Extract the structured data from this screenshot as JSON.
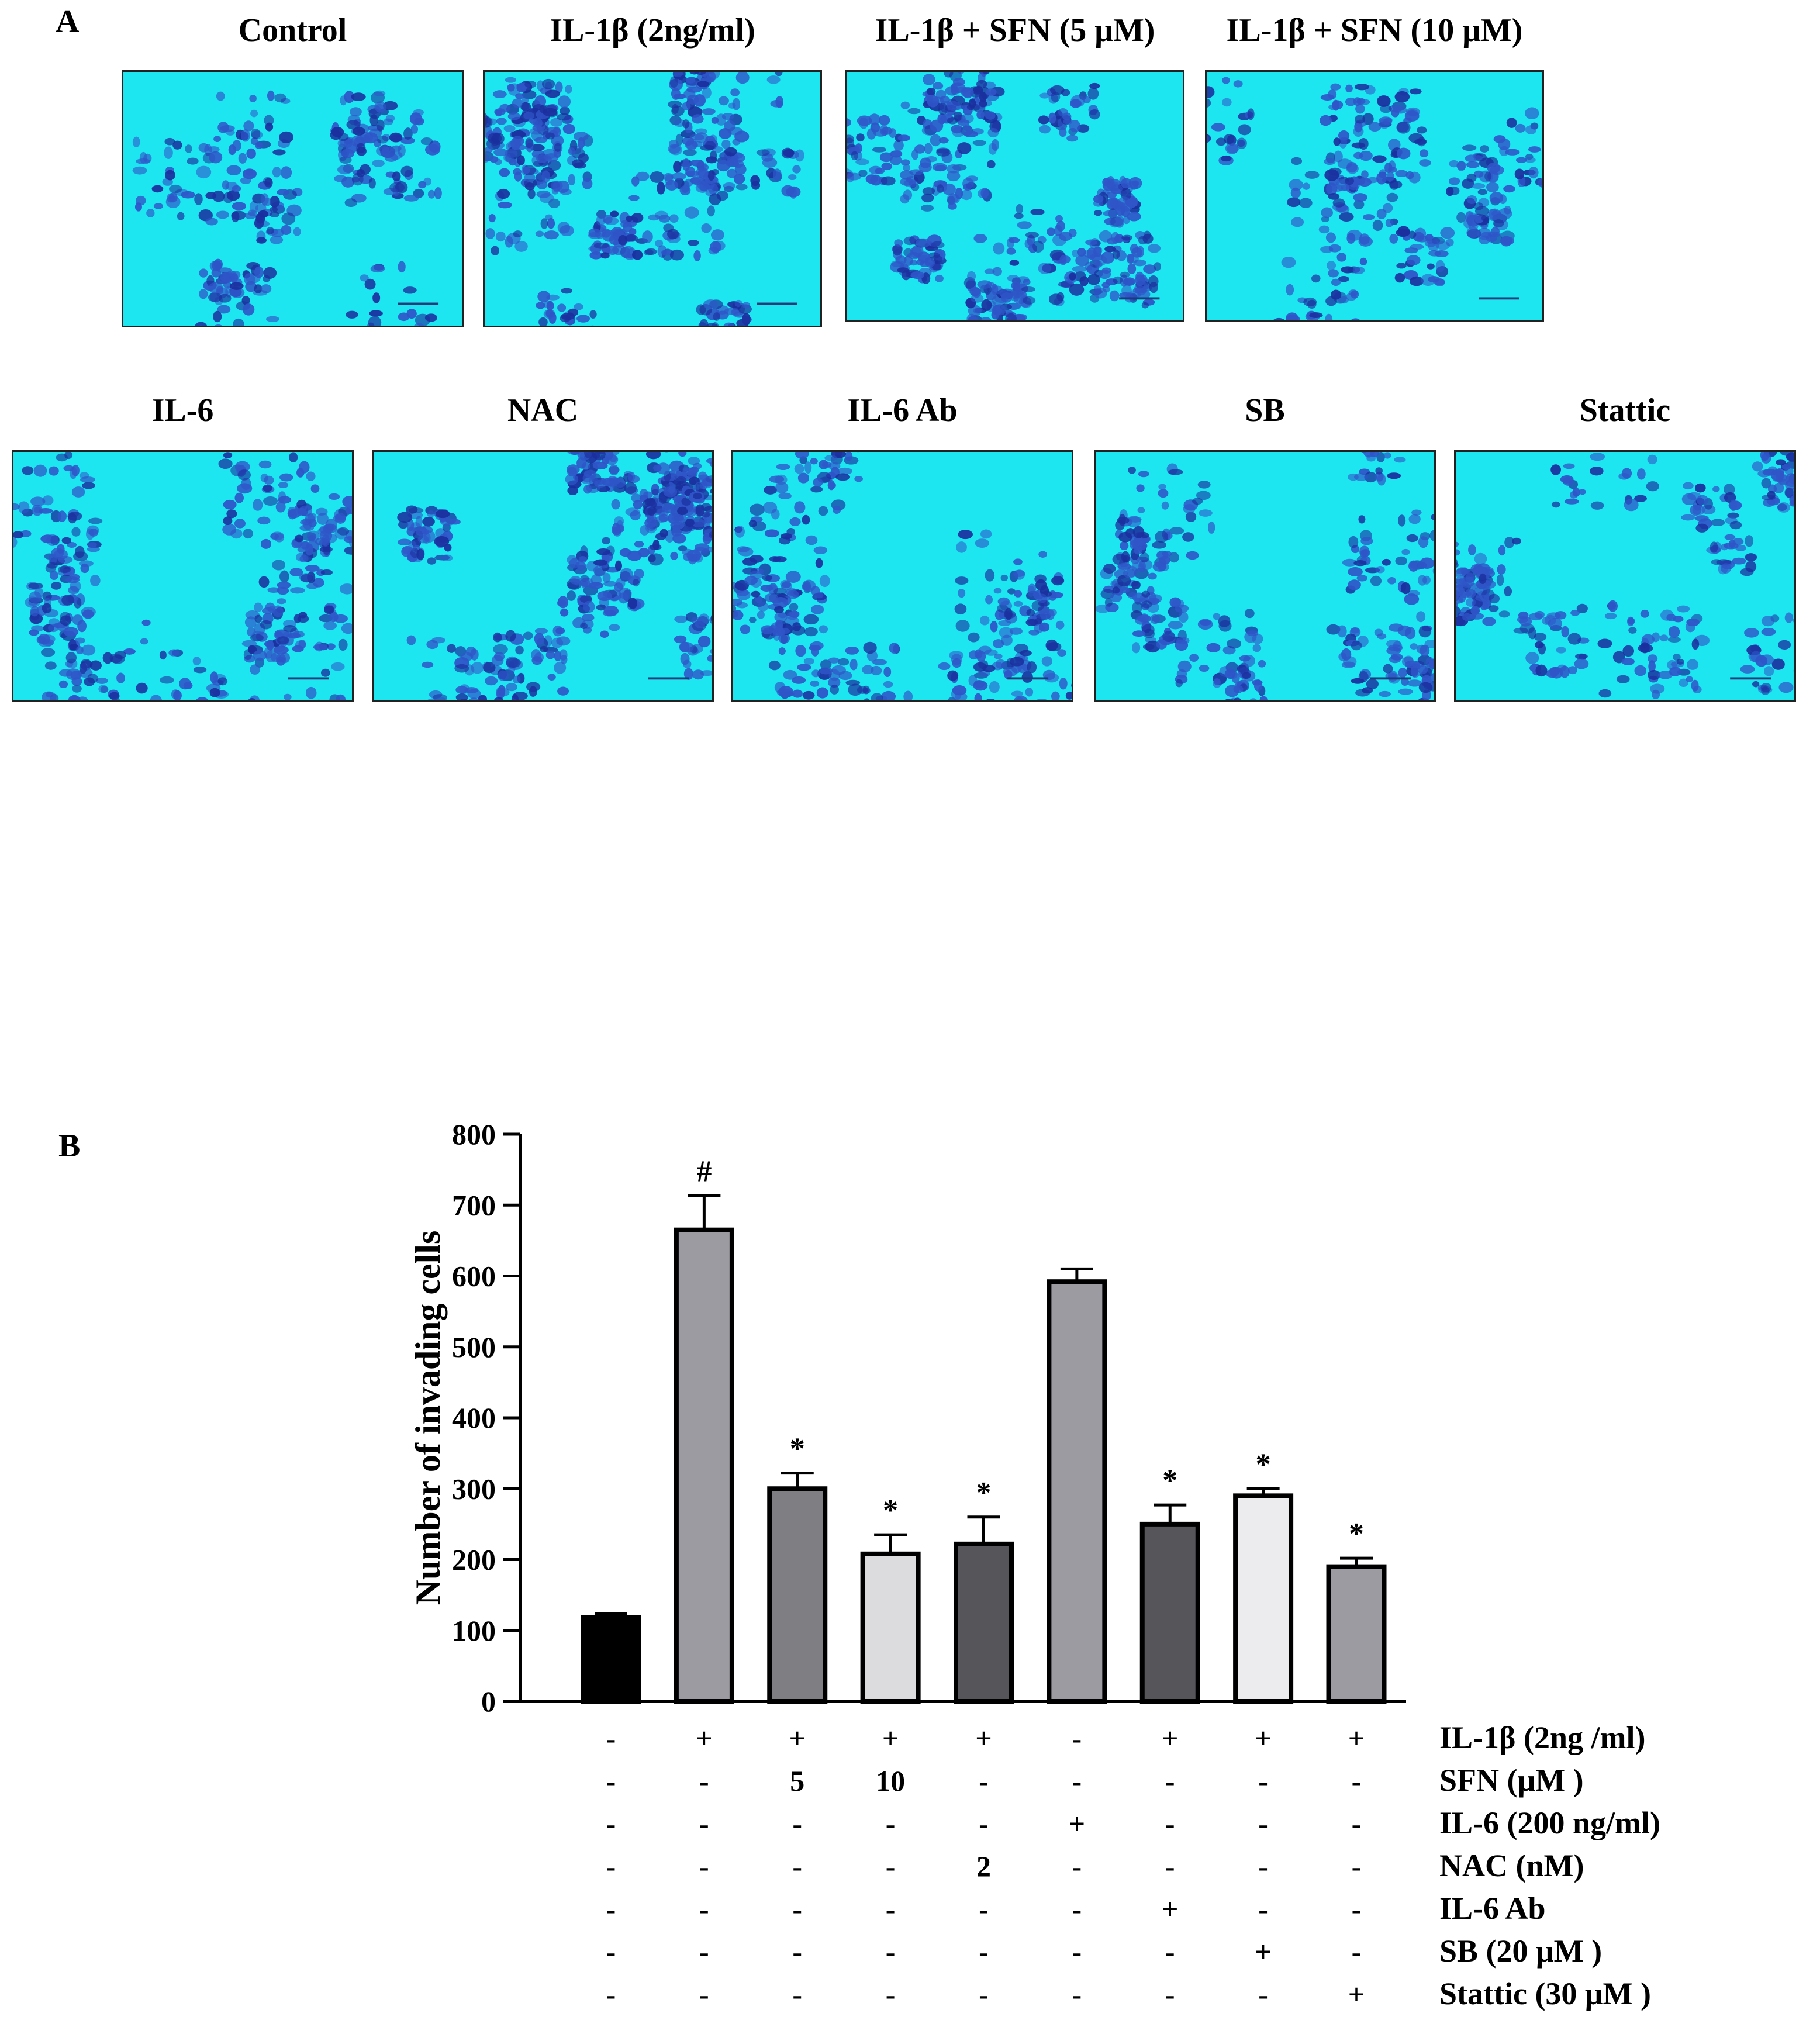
{
  "panel_a": {
    "letter": "A",
    "images": [
      {
        "label": "Control",
        "density": 0.55
      },
      {
        "label": "IL-1β (2ng/ml)",
        "density": 1.0
      },
      {
        "label": "IL-1β + SFN (5 μM)",
        "density": 0.85
      },
      {
        "label": "IL-1β + SFN (10 μM)",
        "density": 0.55
      },
      {
        "label": "IL-6",
        "density": 0.7
      },
      {
        "label": "NAC",
        "density": 0.9
      },
      {
        "label": "IL-6  Ab",
        "density": 0.75
      },
      {
        "label": "SB",
        "density": 0.65
      },
      {
        "label": "Stattic",
        "density": 0.8
      }
    ],
    "colors": {
      "background": "#1ee6f0",
      "cell": "#2f55c8",
      "cell_dark": "#1b2f9e"
    }
  },
  "panel_b": {
    "letter": "B"
  },
  "chart_data": {
    "type": "bar",
    "ylabel": "Number of invading cells",
    "ylim": [
      0,
      800
    ],
    "yticks": [
      0,
      100,
      200,
      300,
      400,
      500,
      600,
      700,
      800
    ],
    "bars": [
      {
        "value": 118,
        "error": 6,
        "annotation": "",
        "color": "#000000"
      },
      {
        "value": 665,
        "error": 48,
        "annotation": "#",
        "color": "#9b9ba1"
      },
      {
        "value": 300,
        "error": 22,
        "annotation": "*",
        "color": "#7e7e83"
      },
      {
        "value": 208,
        "error": 27,
        "annotation": "*",
        "color": "#dcdcde"
      },
      {
        "value": 222,
        "error": 38,
        "annotation": "*",
        "color": "#55555a"
      },
      {
        "value": 592,
        "error": 18,
        "annotation": "",
        "color": "#9b9ba1"
      },
      {
        "value": 250,
        "error": 27,
        "annotation": "*",
        "color": "#55555a"
      },
      {
        "value": 290,
        "error": 10,
        "annotation": "*",
        "color": "#ececee"
      },
      {
        "value": 190,
        "error": 12,
        "annotation": "*",
        "color": "#9b9ba1"
      }
    ],
    "treatment_table": [
      {
        "label": "IL-1β (2ng /ml)",
        "cells": [
          "-",
          "+",
          "+",
          "+",
          "+",
          "-",
          "+",
          "+",
          "+"
        ]
      },
      {
        "label": "SFN (μM  )",
        "cells": [
          "-",
          "-",
          "5",
          "10",
          "-",
          "-",
          "-",
          "-",
          "-"
        ]
      },
      {
        "label": "IL-6 (200 ng/ml)",
        "cells": [
          "-",
          "-",
          "-",
          "-",
          "-",
          "+",
          "-",
          "-",
          "-"
        ]
      },
      {
        "label": "NAC (nM)",
        "cells": [
          "-",
          "-",
          "-",
          "-",
          "2",
          "-",
          "-",
          "-",
          "-"
        ]
      },
      {
        "label": "IL-6 Ab",
        "cells": [
          "-",
          "-",
          "-",
          "-",
          "-",
          "-",
          "+",
          "-",
          "-"
        ]
      },
      {
        "label": "SB (20 μM  )",
        "cells": [
          "-",
          "-",
          "-",
          "-",
          "-",
          "-",
          "-",
          "+",
          "-"
        ]
      },
      {
        "label": "Stattic (30 μM  )",
        "cells": [
          "-",
          "-",
          "-",
          "-",
          "-",
          "-",
          "-",
          "-",
          "+"
        ]
      }
    ]
  }
}
